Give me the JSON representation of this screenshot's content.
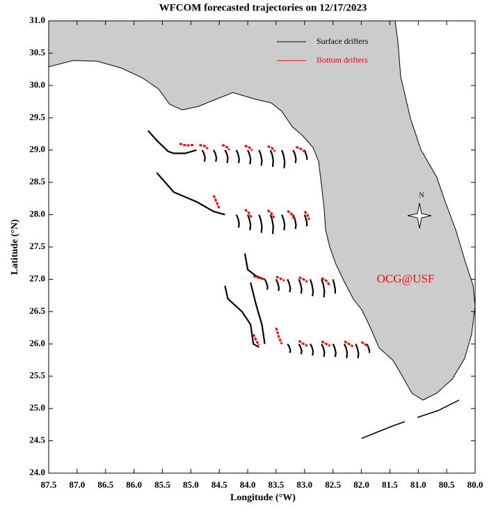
{
  "chart_data": {
    "type": "trajectory-map",
    "title": "WFCOM forecasted trajectories on 12/17/2023",
    "x_label": "Longitude (°W)",
    "y_label": "Latitude (°N)",
    "annotation": "OCG@USF",
    "compass_label": "N",
    "xlim": [
      87.5,
      80.0
    ],
    "ylim": [
      24.0,
      31.0
    ],
    "xticks": [
      87.5,
      {
        "value": 87,
        "label": "87.0"
      },
      86.5,
      {
        "value": 86,
        "label": "86.0"
      },
      85.5,
      {
        "value": 85,
        "label": "85.0"
      },
      84.5,
      {
        "value": 84,
        "label": "84.0"
      },
      83.5,
      {
        "value": 83,
        "label": "83.0"
      },
      82.5,
      {
        "value": 82,
        "label": "82.0"
      },
      81.5,
      {
        "value": 81,
        "label": "81.0"
      },
      80.5,
      {
        "value": 80,
        "label": "80.0"
      }
    ],
    "yticks": [
      {
        "value": 24,
        "label": "24.0"
      },
      24.5,
      {
        "value": 25,
        "label": "25.0"
      },
      25.5,
      {
        "value": 26,
        "label": "26.0"
      },
      26.5,
      {
        "value": 27,
        "label": "27.0"
      },
      27.5,
      {
        "value": 28,
        "label": "28.0"
      },
      28.5,
      {
        "value": 29,
        "label": "29.0"
      },
      29.5,
      {
        "value": 30,
        "label": "30.0"
      },
      30.5,
      {
        "value": 31,
        "label": "31.0"
      }
    ],
    "series": [
      {
        "name": "Surface drifters",
        "color": "#000000",
        "tracks": [
          {
            "x": [
              85.75,
              85.6,
              85.4,
              85.3,
              85.1,
              84.9
            ],
            "y": [
              29.3,
              29.15,
              28.98,
              28.95,
              28.95,
              29.0
            ]
          },
          {
            "x": [
              85.6,
              85.3,
              84.9,
              84.6,
              84.4
            ],
            "y": [
              28.65,
              28.35,
              28.2,
              28.05,
              28.0
            ]
          },
          {
            "x": [
              84.05,
              84.0,
              83.85,
              83.7
            ],
            "y": [
              27.4,
              27.15,
              27.05,
              27.0
            ]
          },
          {
            "x": [
              84.4,
              84.35,
              84.1,
              83.95,
              83.9,
              83.8
            ],
            "y": [
              26.9,
              26.7,
              26.5,
              26.3,
              26.0,
              25.95
            ]
          },
          {
            "x": [
              83.95,
              83.85,
              83.75,
              83.7
            ],
            "y": [
              26.95,
              26.6,
              26.3,
              26.0
            ]
          },
          {
            "x": [
              84.8,
              84.77,
              84.75,
              84.76
            ],
            "y": [
              29.0,
              28.95,
              28.88,
              28.82
            ]
          },
          {
            "x": [
              84.6,
              84.57,
              84.55,
              84.56
            ],
            "y": [
              29.0,
              28.95,
              28.88,
              28.82
            ]
          },
          {
            "x": [
              84.4,
              84.37,
              84.35,
              84.36
            ],
            "y": [
              29.0,
              28.95,
              28.88,
              28.8
            ]
          },
          {
            "x": [
              84.2,
              84.17,
              84.15,
              84.16
            ],
            "y": [
              29.0,
              28.94,
              28.86,
              28.8
            ]
          },
          {
            "x": [
              84.0,
              83.97,
              83.95,
              83.96
            ],
            "y": [
              29.0,
              28.94,
              28.86,
              28.78
            ]
          },
          {
            "x": [
              83.8,
              83.77,
              83.75,
              83.76
            ],
            "y": [
              29.0,
              28.93,
              28.84,
              28.76
            ]
          },
          {
            "x": [
              83.6,
              83.57,
              83.55,
              83.56
            ],
            "y": [
              29.0,
              28.93,
              28.84,
              28.74
            ]
          },
          {
            "x": [
              83.4,
              83.37,
              83.35,
              83.36
            ],
            "y": [
              29.0,
              28.92,
              28.82,
              28.72
            ]
          },
          {
            "x": [
              83.2,
              83.17,
              83.15,
              83.16
            ],
            "y": [
              29.0,
              28.94,
              28.86,
              28.8
            ]
          },
          {
            "x": [
              83.0,
              82.98,
              82.96,
              82.96
            ],
            "y": [
              29.0,
              28.95,
              28.9,
              28.85
            ]
          },
          {
            "x": [
              84.2,
              84.17,
              84.15,
              84.16
            ],
            "y": [
              28.0,
              27.94,
              27.86,
              27.8
            ]
          },
          {
            "x": [
              84.0,
              83.97,
              83.95,
              83.96
            ],
            "y": [
              28.0,
              27.93,
              27.84,
              27.76
            ]
          },
          {
            "x": [
              83.8,
              83.77,
              83.75,
              83.76
            ],
            "y": [
              28.0,
              27.92,
              27.82,
              27.72
            ]
          },
          {
            "x": [
              83.6,
              83.57,
              83.55,
              83.56
            ],
            "y": [
              28.0,
              27.92,
              27.82,
              27.7
            ]
          },
          {
            "x": [
              83.4,
              83.37,
              83.35,
              83.36
            ],
            "y": [
              28.0,
              27.93,
              27.84,
              27.76
            ]
          },
          {
            "x": [
              83.2,
              83.17,
              83.15,
              83.16
            ],
            "y": [
              28.0,
              27.93,
              27.84,
              27.78
            ]
          },
          {
            "x": [
              83.0,
              82.98,
              82.96,
              82.96
            ],
            "y": [
              28.0,
              27.95,
              27.88,
              27.82
            ]
          },
          {
            "x": [
              83.7,
              83.67,
              83.65,
              83.66
            ],
            "y": [
              27.0,
              26.95,
              26.88,
              26.84
            ]
          },
          {
            "x": [
              83.5,
              83.47,
              83.45,
              83.46
            ],
            "y": [
              27.0,
              26.94,
              26.86,
              26.82
            ]
          },
          {
            "x": [
              83.3,
              83.27,
              83.25,
              83.26
            ],
            "y": [
              27.0,
              26.94,
              26.86,
              26.8
            ]
          },
          {
            "x": [
              83.1,
              83.07,
              83.05,
              83.06
            ],
            "y": [
              27.0,
              26.93,
              26.84,
              26.78
            ]
          },
          {
            "x": [
              82.9,
              82.87,
              82.85,
              82.86
            ],
            "y": [
              27.0,
              26.92,
              26.82,
              26.74
            ]
          },
          {
            "x": [
              82.7,
              82.67,
              82.65,
              82.66
            ],
            "y": [
              27.0,
              26.92,
              26.82,
              26.72
            ]
          },
          {
            "x": [
              82.5,
              82.48,
              82.46,
              82.46
            ],
            "y": [
              27.0,
              26.93,
              26.84,
              26.78
            ]
          },
          {
            "x": [
              83.3,
              83.27,
              83.25,
              83.26
            ],
            "y": [
              26.0,
              25.96,
              25.9,
              25.86
            ]
          },
          {
            "x": [
              83.1,
              83.07,
              83.05,
              83.06
            ],
            "y": [
              26.0,
              25.95,
              25.89,
              25.84
            ]
          },
          {
            "x": [
              82.9,
              82.87,
              82.85,
              82.86
            ],
            "y": [
              26.0,
              25.95,
              25.88,
              25.82
            ]
          },
          {
            "x": [
              82.7,
              82.67,
              82.65,
              82.66
            ],
            "y": [
              26.0,
              25.94,
              25.87,
              25.8
            ]
          },
          {
            "x": [
              82.5,
              82.47,
              82.45,
              82.46
            ],
            "y": [
              26.0,
              25.94,
              25.86,
              25.8
            ]
          },
          {
            "x": [
              82.3,
              82.27,
              82.25,
              82.26
            ],
            "y": [
              26.0,
              25.94,
              25.86,
              25.78
            ]
          },
          {
            "x": [
              82.1,
              82.07,
              82.05,
              82.06
            ],
            "y": [
              26.0,
              25.93,
              25.85,
              25.78
            ]
          },
          {
            "x": [
              81.9,
              81.88,
              81.86,
              81.86
            ],
            "y": [
              26.0,
              25.95,
              25.9,
              25.86
            ]
          }
        ]
      },
      {
        "name": "Bottom drifters",
        "color": "#ff0000",
        "tracks": [
          {
            "x": [
              85.2,
              85.08,
              84.95
            ],
            "y": [
              29.1,
              29.07,
              29.08
            ]
          },
          {
            "x": [
              84.85,
              84.75,
              84.7
            ],
            "y": [
              29.08,
              29.06,
              29.02
            ]
          },
          {
            "x": [
              84.45,
              84.37,
              84.32
            ],
            "y": [
              29.08,
              29.05,
              29.0
            ]
          },
          {
            "x": [
              84.05,
              83.97,
              83.92
            ],
            "y": [
              29.07,
              29.04,
              28.99
            ]
          },
          {
            "x": [
              83.65,
              83.57,
              83.52
            ],
            "y": [
              29.06,
              29.03,
              28.98
            ]
          },
          {
            "x": [
              83.15,
              83.07,
              83.0
            ],
            "y": [
              29.05,
              29.02,
              28.98
            ]
          },
          {
            "x": [
              84.6,
              84.55,
              84.5
            ],
            "y": [
              28.3,
              28.2,
              28.1
            ]
          },
          {
            "x": [
              84.05,
              83.98,
              83.93
            ],
            "y": [
              28.08,
              28.03,
              27.95
            ]
          },
          {
            "x": [
              83.65,
              83.58,
              83.53
            ],
            "y": [
              28.07,
              28.02,
              27.94
            ]
          },
          {
            "x": [
              83.3,
              83.23,
              83.18
            ],
            "y": [
              28.06,
              28.01,
              27.93
            ]
          },
          {
            "x": [
              83.0,
              82.95,
              82.92
            ],
            "y": [
              28.05,
              28.0,
              27.92
            ]
          },
          {
            "x": [
              83.9,
              83.8,
              83.7
            ],
            "y": [
              27.05,
              27.02,
              27.0
            ]
          },
          {
            "x": [
              83.5,
              83.42,
              83.35
            ],
            "y": [
              27.04,
              27.01,
              26.98
            ]
          },
          {
            "x": [
              83.1,
              83.02,
              82.95
            ],
            "y": [
              27.03,
              27.0,
              26.96
            ]
          },
          {
            "x": [
              82.7,
              82.62,
              82.55
            ],
            "y": [
              27.02,
              26.98,
              26.9
            ]
          },
          {
            "x": [
              83.9,
              83.85,
              83.8
            ],
            "y": [
              26.15,
              26.05,
              25.98
            ]
          },
          {
            "x": [
              83.5,
              83.45,
              83.4
            ],
            "y": [
              26.25,
              26.1,
              26.0
            ]
          },
          {
            "x": [
              83.1,
              83.02,
              82.95
            ],
            "y": [
              26.05,
              26.0,
              25.97
            ]
          },
          {
            "x": [
              82.7,
              82.62,
              82.55
            ],
            "y": [
              26.04,
              26.0,
              25.97
            ]
          },
          {
            "x": [
              82.3,
              82.22,
              82.15
            ],
            "y": [
              26.04,
              26.0,
              25.96
            ]
          },
          {
            "x": [
              82.0,
              81.93,
              81.87
            ],
            "y": [
              26.03,
              25.99,
              25.95
            ]
          }
        ]
      }
    ]
  }
}
